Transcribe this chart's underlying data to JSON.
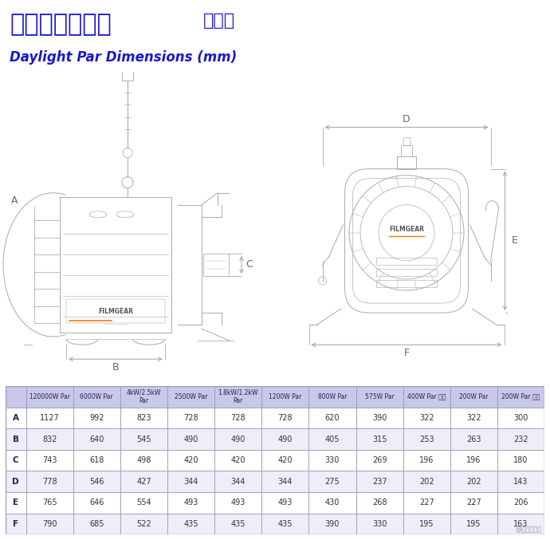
{
  "title_chinese": "高色温直射镝灯",
  "title_chinese2": "规格表",
  "title_english": "Daylight Par Dimensions (mm)",
  "title_color": "#1a1acc",
  "bg_color": "#ffffff",
  "table_header_bg": "#c8c8e8",
  "table_row_bg1": "#ffffff",
  "table_row_bg2": "#eeeef8",
  "table_border_color": "#9999bb",
  "watermark": "@影视工业网",
  "columns": [
    "",
    "120000W Par",
    "6000W Par",
    "4kW/2.5kW\nPar",
    "2500W Par",
    "1.8kW/1.2kW\nPar",
    "1200W Par",
    "800W Par",
    "575W Par",
    "400W Par 小型",
    "200W Par",
    "200W Par 小型"
  ],
  "rows": [
    [
      "A",
      "1127",
      "992",
      "823",
      "728",
      "728",
      "728",
      "620",
      "390",
      "322",
      "322",
      "300"
    ],
    [
      "B",
      "832",
      "640",
      "545",
      "490",
      "490",
      "490",
      "405",
      "315",
      "253",
      "263",
      "232"
    ],
    [
      "C",
      "743",
      "618",
      "498",
      "420",
      "420",
      "420",
      "330",
      "269",
      "196",
      "196",
      "180"
    ],
    [
      "D",
      "778",
      "546",
      "427",
      "344",
      "344",
      "344",
      "275",
      "237",
      "202",
      "202",
      "143"
    ],
    [
      "E",
      "765",
      "646",
      "554",
      "493",
      "493",
      "493",
      "430",
      "268",
      "227",
      "227",
      "206"
    ],
    [
      "F",
      "790",
      "685",
      "522",
      "435",
      "435",
      "435",
      "390",
      "330",
      "195",
      "195",
      "163"
    ]
  ],
  "dim_color": "#aaaaaa",
  "line_color": "#aaaaaa",
  "label_color": "#888888"
}
